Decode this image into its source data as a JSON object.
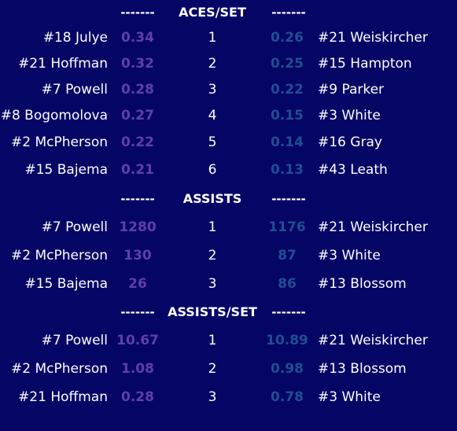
{
  "dash": "-------",
  "sections": [
    {
      "title": "ACES/SET",
      "rows": [
        {
          "left_name": "#18 Julye",
          "left_value": "0.34",
          "rank": "1",
          "right_value": "0.26",
          "right_name": "#21 Weiskircher"
        },
        {
          "left_name": "#21 Hoffman",
          "left_value": "0.32",
          "rank": "2",
          "right_value": "0.25",
          "right_name": "#15 Hampton"
        },
        {
          "left_name": "#7 Powell",
          "left_value": "0.28",
          "rank": "3",
          "right_value": "0.22",
          "right_name": "#9 Parker"
        },
        {
          "left_name": "#8 Bogomolova",
          "left_value": "0.27",
          "rank": "4",
          "right_value": "0.15",
          "right_name": "#3 White"
        },
        {
          "left_name": "#2 McPherson",
          "left_value": "0.22",
          "rank": "5",
          "right_value": "0.14",
          "right_name": "#16 Gray"
        },
        {
          "left_name": "#15 Bajema",
          "left_value": "0.21",
          "rank": "6",
          "right_value": "0.13",
          "right_name": "#43 Leath"
        }
      ]
    },
    {
      "title": "ASSISTS",
      "rows": [
        {
          "left_name": "#7 Powell",
          "left_value": "1280",
          "rank": "1",
          "right_value": "1176",
          "right_name": "#21 Weiskircher"
        },
        {
          "left_name": "#2 McPherson",
          "left_value": "130",
          "rank": "2",
          "right_value": "87",
          "right_name": "#3 White"
        },
        {
          "left_name": "#15 Bajema",
          "left_value": "26",
          "rank": "3",
          "right_value": "86",
          "right_name": "#13 Blossom"
        }
      ]
    },
    {
      "title": "ASSISTS/SET",
      "rows": [
        {
          "left_name": "#7 Powell",
          "left_value": "10.67",
          "rank": "1",
          "right_value": "10.89",
          "right_name": "#21 Weiskircher"
        },
        {
          "left_name": "#2 McPherson",
          "left_value": "1.08",
          "rank": "2",
          "right_value": "0.98",
          "right_name": "#13 Blossom"
        },
        {
          "left_name": "#21 Hoffman",
          "left_value": "0.28",
          "rank": "3",
          "right_value": "0.78",
          "right_name": "#3 White"
        }
      ]
    }
  ]
}
